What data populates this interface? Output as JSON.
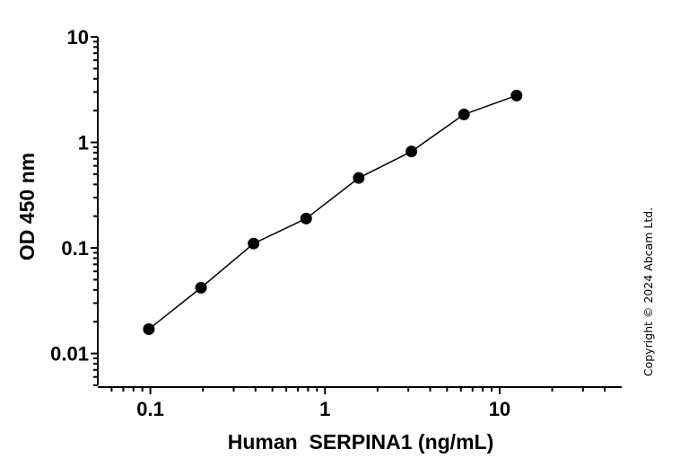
{
  "chart_data": {
    "type": "line",
    "title": "",
    "xlabel": "Human  SERPINA1 (ng/mL)",
    "ylabel": "OD 450 nm",
    "xscale": "log",
    "yscale": "log",
    "xlim": [
      0.05,
      50
    ],
    "ylim": [
      0.005,
      10
    ],
    "x_ticks": [
      0.1,
      1,
      10
    ],
    "x_tick_labels": [
      "0.1",
      "1",
      "10"
    ],
    "y_ticks": [
      0.01,
      0.1,
      1,
      10
    ],
    "y_tick_labels": [
      "0.01",
      "0.1",
      "1",
      "10"
    ],
    "grid": false,
    "legend": null,
    "series": [
      {
        "name": "Human SERPINA1",
        "marker": "circle",
        "color": "#000000",
        "x": [
          0.098,
          0.195,
          0.39,
          0.78,
          1.56,
          3.125,
          6.25,
          12.5
        ],
        "y": [
          0.017,
          0.042,
          0.11,
          0.19,
          0.46,
          0.82,
          1.84,
          2.78
        ]
      }
    ],
    "annotations": [
      "Copyright © 2024 Abcam Ltd."
    ]
  },
  "copyright": "Copyright © 2024 Abcam Ltd."
}
